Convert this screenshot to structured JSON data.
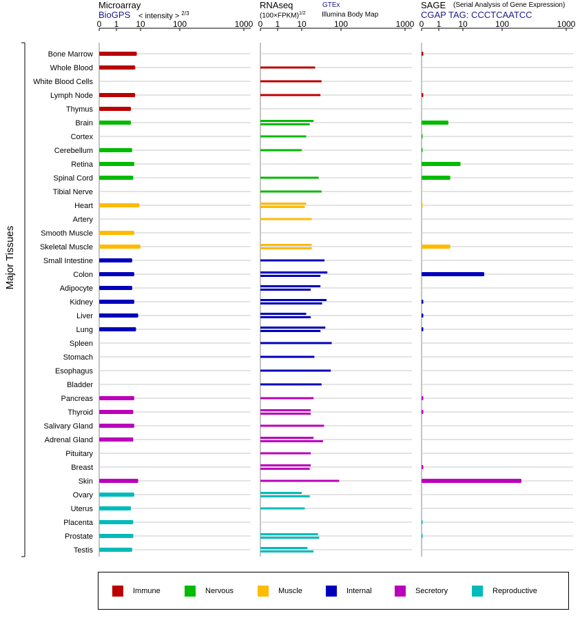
{
  "header": {
    "microarray_title": "Microarray",
    "microarray_source": "BioGPS",
    "microarray_unit": "< intensity >",
    "microarray_exponent": "2/3",
    "rnaseq_title": "RNAseq",
    "rnaseq_unit": "(100×FPKM)",
    "rnaseq_exponent": "1/2",
    "rnaseq_source1": "GTEx",
    "rnaseq_source2": "Illumina Body Map",
    "sage_title": "SAGE",
    "sage_subtitle": "(Serial Analysis of Gene Expression)",
    "sage_tag": "CGAP TAG: CCCTCAATCC"
  },
  "ylabel": "Major Tissues",
  "colors": {
    "Immune": "#bb0000",
    "Nervous": "#00bb00",
    "Muscle": "#ffbb00",
    "Internal": "#0000bb",
    "Secretory": "#bb00bb",
    "Reproductive": "#00bbbb"
  },
  "legend": [
    "Immune",
    "Nervous",
    "Muscle",
    "Internal",
    "Secretory",
    "Reproductive"
  ],
  "chart_data": {
    "type": "bar",
    "orientation": "horizontal",
    "axis_ticks": [
      "0",
      "1",
      "10",
      "100",
      "1000"
    ],
    "tick_values": [
      0,
      1,
      10,
      100,
      1000
    ],
    "categories": [
      "Bone Marrow",
      "Whole Blood",
      "White Blood Cells",
      "Lymph Node",
      "Thymus",
      "Brain",
      "Cortex",
      "Cerebellum",
      "Retina",
      "Spinal Cord",
      "Tibial Nerve",
      "Heart",
      "Artery",
      "Smooth Muscle",
      "Skeletal Muscle",
      "Small Intestine",
      "Colon",
      "Adipocyte",
      "Kidney",
      "Liver",
      "Lung",
      "Spleen",
      "Stomach",
      "Esophagus",
      "Bladder",
      "Pancreas",
      "Thyroid",
      "Salivary Gland",
      "Adrenal Gland",
      "Pituitary",
      "Breast",
      "Skin",
      "Ovary",
      "Uterus",
      "Placenta",
      "Prostate",
      "Testis"
    ],
    "groups": [
      "Immune",
      "Immune",
      "Immune",
      "Immune",
      "Immune",
      "Nervous",
      "Nervous",
      "Nervous",
      "Nervous",
      "Nervous",
      "Nervous",
      "Muscle",
      "Muscle",
      "Muscle",
      "Muscle",
      "Internal",
      "Internal",
      "Internal",
      "Internal",
      "Internal",
      "Internal",
      "Internal",
      "Internal",
      "Internal",
      "Internal",
      "Secretory",
      "Secretory",
      "Secretory",
      "Secretory",
      "Secretory",
      "Secretory",
      "Secretory",
      "Reproductive",
      "Reproductive",
      "Reproductive",
      "Reproductive",
      "Reproductive"
    ],
    "panels": [
      {
        "name": "Microarray",
        "values": [
          7,
          6,
          null,
          6,
          4,
          4,
          null,
          4.5,
          5.5,
          5,
          null,
          9,
          null,
          5.5,
          10,
          4.5,
          5.5,
          4.5,
          5.5,
          8,
          6.5,
          null,
          null,
          null,
          null,
          5.5,
          5,
          5.5,
          5,
          null,
          null,
          8,
          5.5,
          4,
          5,
          5,
          4.5
        ]
      },
      {
        "name": "RNAseq",
        "series": [
          {
            "name": "GTEx",
            "values": [
              null,
              22,
              null,
              null,
              null,
              20,
              null,
              null,
              null,
              null,
              null,
              13,
              null,
              null,
              18,
              null,
              null,
              null,
              null,
              null,
              null,
              null,
              null,
              null,
              null,
              null,
              null,
              null,
              null,
              null,
              null,
              null,
              10,
              null,
              null,
              null,
              null
            ]
          },
          {
            "name": "Illumina Body Map",
            "values": [
              null,
              null,
              null,
              null,
              null,
              16,
              null,
              null,
              null,
              null,
              null,
              null,
              null,
              null,
              18,
              null,
              null,
              null,
              null,
              null,
              null,
              null,
              null,
              null,
              null,
              null,
              null,
              null,
              null,
              null,
              null,
              null,
              16,
              null,
              null,
              null,
              null
            ]
          }
        ],
        "row_values": [
          [],
          [
            22
          ],
          [
            32
          ],
          [
            30
          ],
          [],
          [
            20,
            16
          ],
          [
            13
          ],
          [
            10
          ],
          [],
          [
            27
          ],
          [
            32
          ],
          [
            13,
            12
          ],
          [
            18
          ],
          [],
          [
            18,
            18
          ],
          [
            38
          ],
          [
            45,
            30
          ],
          [
            30,
            17
          ],
          [
            43,
            33
          ],
          [
            13,
            17
          ],
          [
            40,
            30
          ],
          [
            58
          ],
          [
            21
          ],
          [
            55
          ],
          [
            32
          ],
          [
            20
          ],
          [
            17,
            17
          ],
          [
            37
          ],
          [
            20,
            35
          ],
          [
            17
          ],
          [
            17,
            16
          ],
          [
            90
          ],
          [
            10,
            16
          ],
          [
            12
          ],
          [],
          [
            26,
            28
          ],
          [
            14,
            20
          ]
        ]
      },
      {
        "name": "SAGE",
        "values": [
          0.1,
          null,
          null,
          0.1,
          null,
          2.5,
          0.05,
          0.05,
          8,
          3,
          null,
          0.05,
          null,
          null,
          3,
          null,
          35,
          null,
          0.1,
          0.1,
          0.1,
          null,
          null,
          null,
          null,
          0.1,
          0.1,
          null,
          null,
          null,
          0.1,
          200,
          null,
          null,
          0.05,
          0.05,
          null
        ]
      }
    ]
  }
}
